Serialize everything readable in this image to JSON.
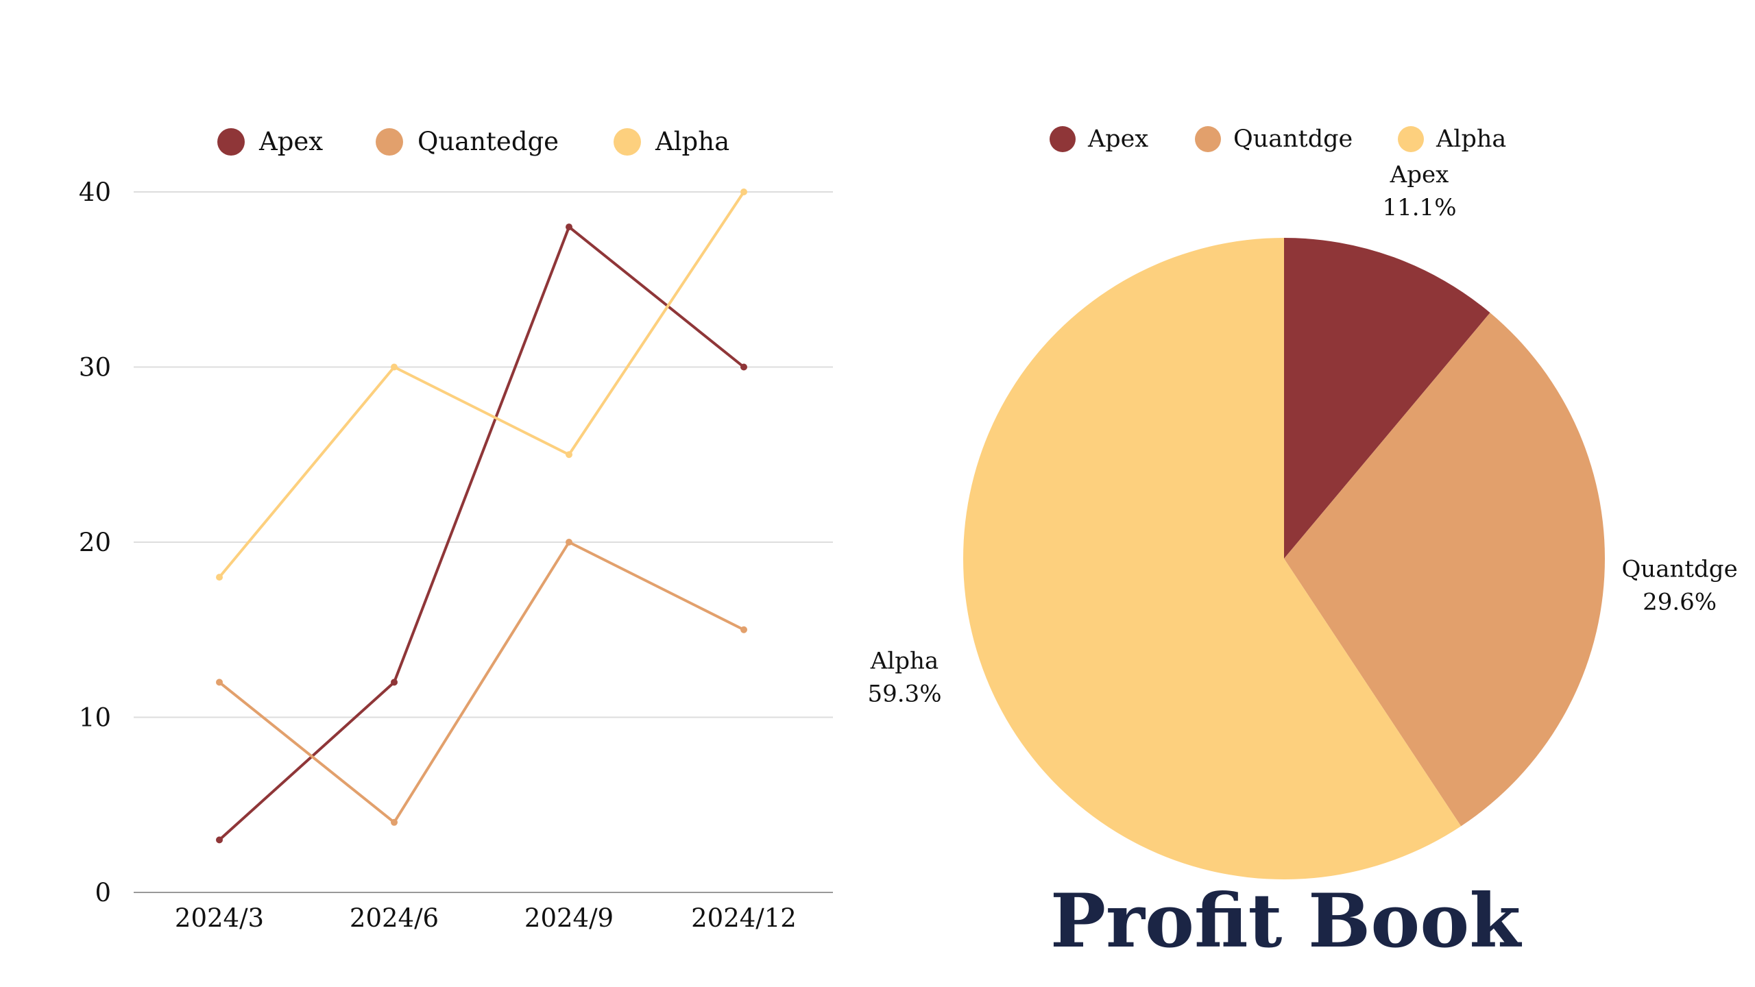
{
  "title": "Profit Book",
  "colors": {
    "apex": "#8f3638",
    "quantedge": "#e2a06c",
    "alpha": "#fdd07e",
    "title": "#1b2545",
    "grid": "#dddddd",
    "axis": "#999999"
  },
  "chart_data": [
    {
      "type": "line",
      "x": [
        "2024/3",
        "2024/6",
        "2024/9",
        "2024/12"
      ],
      "series": [
        {
          "name": "Apex",
          "color": "#8f3638",
          "values": [
            3,
            12,
            38,
            30
          ]
        },
        {
          "name": "Quantedge",
          "color": "#e2a06c",
          "values": [
            12,
            4,
            20,
            15
          ]
        },
        {
          "name": "Alpha",
          "color": "#fdd07e",
          "values": [
            18,
            30,
            25,
            40
          ]
        }
      ],
      "yticks": [
        0,
        10,
        20,
        30,
        40
      ],
      "ylim": [
        0,
        40
      ],
      "grid": true,
      "legend": "top"
    },
    {
      "type": "pie",
      "slices": [
        {
          "name": "Apex",
          "color": "#8f3638",
          "value": 11.1,
          "label": "11.1%"
        },
        {
          "name": "Quantdge",
          "color": "#e2a06c",
          "value": 29.6,
          "label": "29.6%"
        },
        {
          "name": "Alpha",
          "color": "#fdd07e",
          "value": 59.3,
          "label": "59.3%"
        }
      ],
      "legend": "top"
    }
  ]
}
